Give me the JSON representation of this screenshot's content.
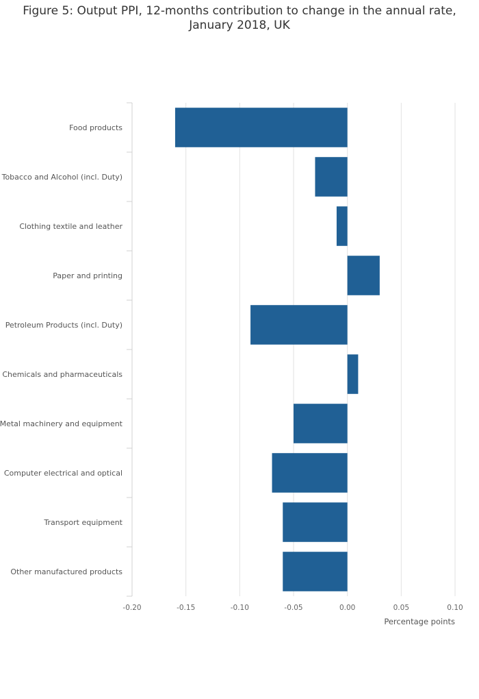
{
  "chart_data": {
    "type": "bar",
    "orientation": "horizontal",
    "title_lines": [
      "Figure 5: Output PPI, 12-months contribution to change in the annual rate,",
      "January 2018, UK"
    ],
    "categories": [
      "Food products",
      "Tobacco and Alcohol (incl. Duty)",
      "Clothing textile and leather",
      "Paper and printing",
      "Petroleum Products (incl. Duty)",
      "Chemicals and pharmaceuticals",
      "Metal machinery and equipment",
      "Computer electrical and optical",
      "Transport equipment",
      "Other manufactured products"
    ],
    "values": [
      -0.16,
      -0.03,
      -0.01,
      0.03,
      -0.09,
      0.01,
      -0.05,
      -0.07,
      -0.06,
      -0.06
    ],
    "xlabel": "Percentage points",
    "ylabel": "",
    "xlim": [
      -0.2,
      0.1
    ],
    "xticks": [
      -0.2,
      -0.15,
      -0.1,
      -0.05,
      0,
      0.05,
      0.1
    ],
    "xtick_labels": [
      "-0.20",
      "-0.15",
      "-0.10",
      "-0.05",
      "0.00",
      "0.05",
      "0.10"
    ],
    "grid": true,
    "legend": "none",
    "bar_color": "#206095",
    "grid_color": "#e2e2e2",
    "axis_color": "#d0d0d0"
  }
}
